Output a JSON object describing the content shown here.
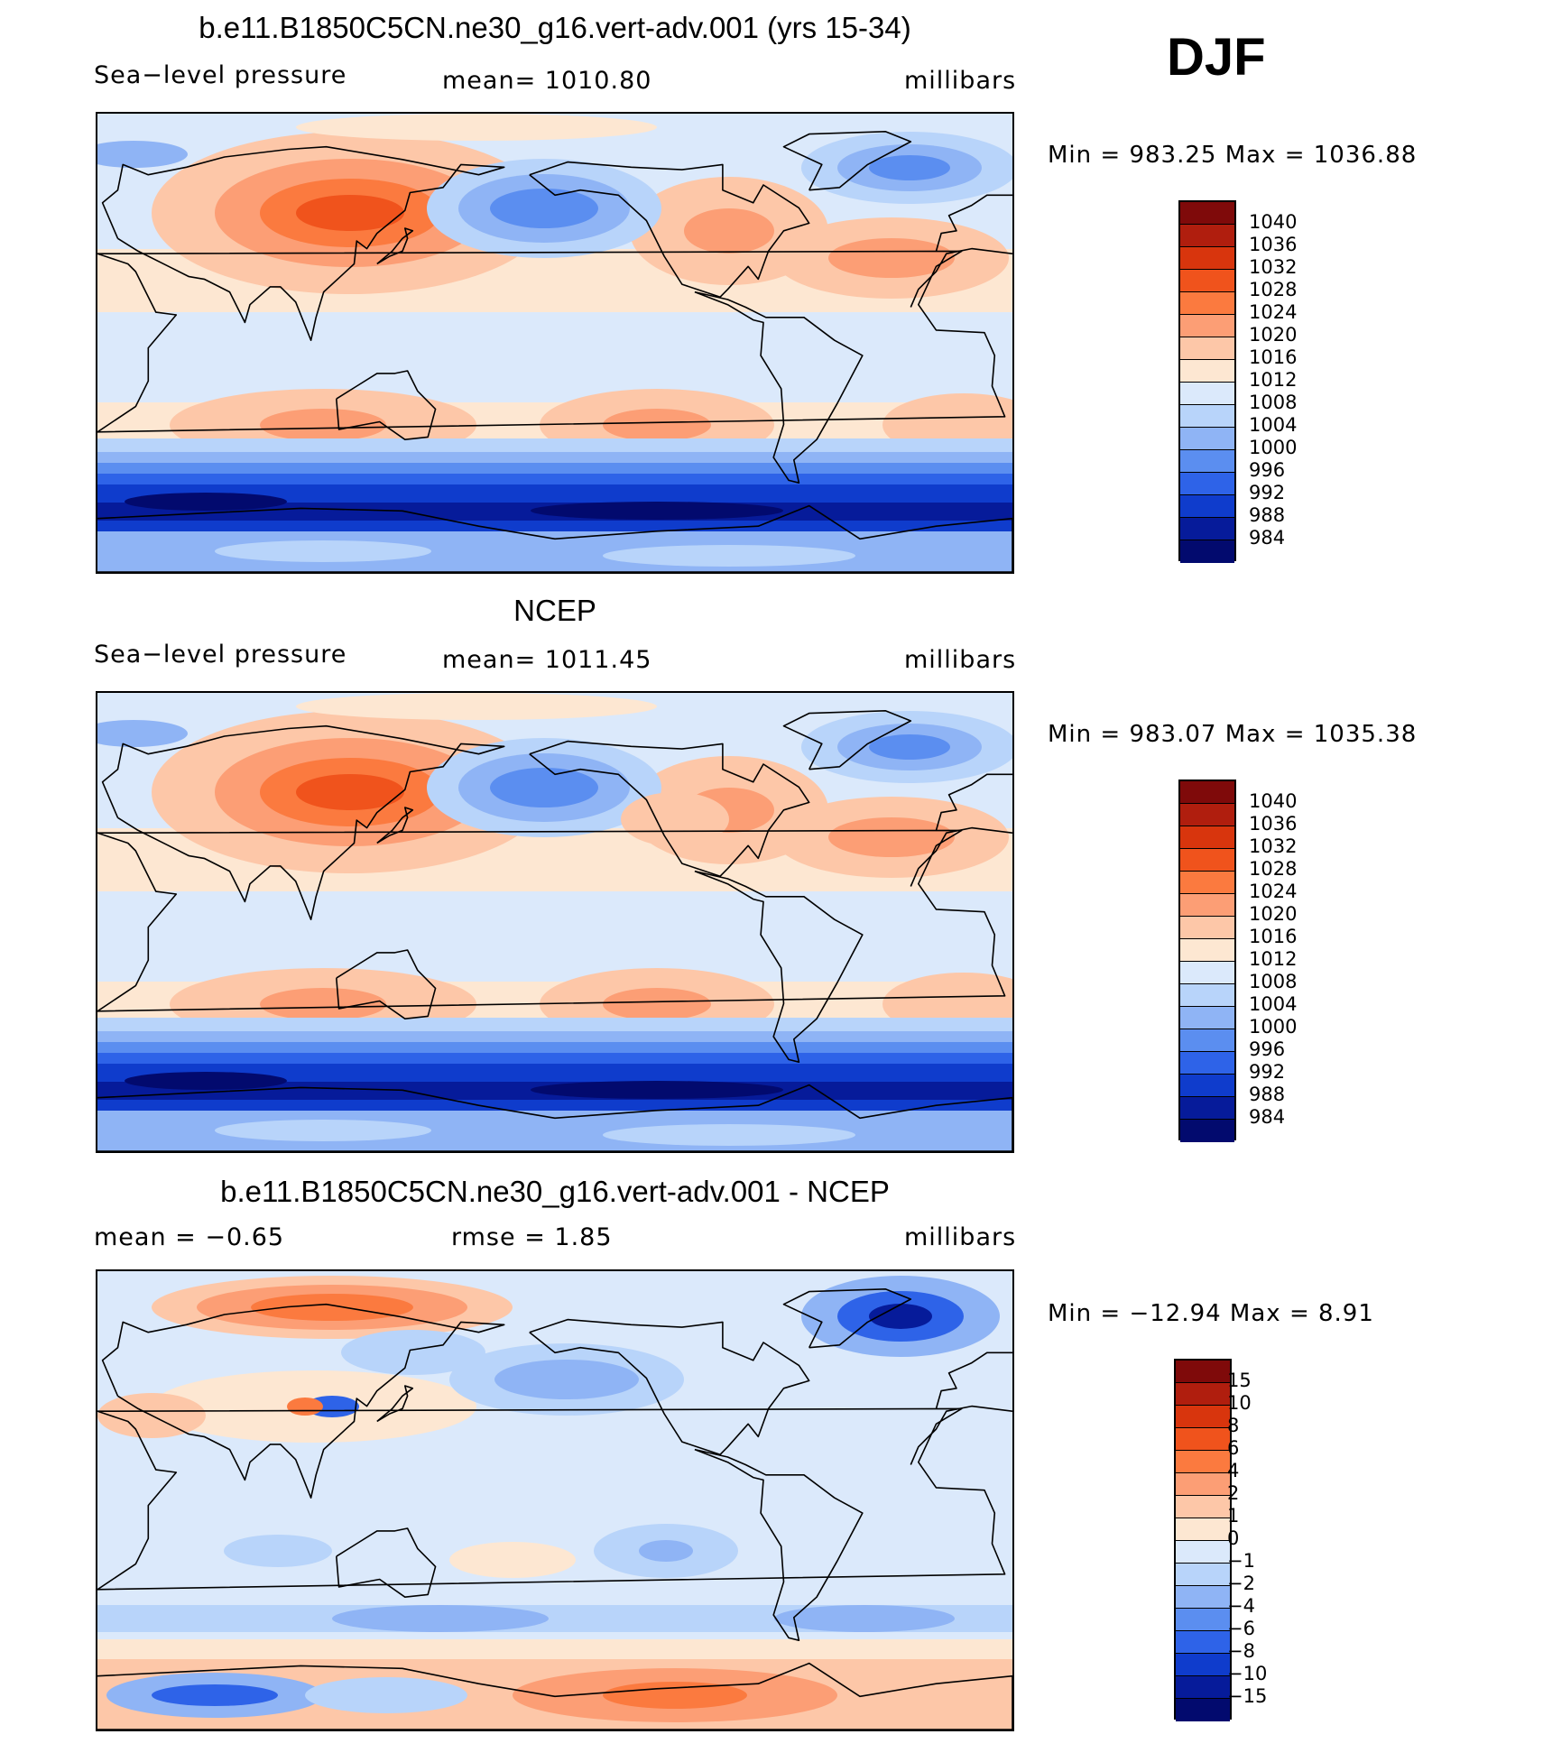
{
  "season": "DJF",
  "panels": [
    {
      "title": "b.e11.B1850C5CN.ne30_g16.vert-adv.001 (yrs 15-34)",
      "left": "Sea−level pressure",
      "center": "mean=  1010.80",
      "right": "millibars",
      "minmax": "Min  =  983.25  Max  =  1036.88",
      "map_name": "model-slp-map",
      "levels": [
        "1040",
        "1036",
        "1032",
        "1028",
        "1024",
        "1020",
        "1016",
        "1012",
        "1008",
        "1004",
        "1000",
        "996",
        "992",
        "988",
        "984"
      ]
    },
    {
      "title": "NCEP",
      "left": "Sea−level pressure",
      "center": "mean=  1011.45",
      "right": "millibars",
      "minmax": "Min  =  983.07  Max  =  1035.38",
      "map_name": "ncep-slp-map",
      "levels": [
        "1040",
        "1036",
        "1032",
        "1028",
        "1024",
        "1020",
        "1016",
        "1012",
        "1008",
        "1004",
        "1000",
        "996",
        "992",
        "988",
        "984"
      ]
    },
    {
      "title": "b.e11.B1850C5CN.ne30_g16.vert-adv.001 - NCEP",
      "left": "mean  =     −0.65",
      "center": "rmse  =     1.85",
      "right": "millibars",
      "minmax": "Min  =  −12.94  Max  =      8.91",
      "map_name": "difference-map",
      "levels": [
        "15",
        "10",
        "8",
        "6",
        "4",
        "2",
        "1",
        "0",
        "−1",
        "−2",
        "−4",
        "−6",
        "−8",
        "−10",
        "−15"
      ]
    }
  ],
  "colors": [
    "#7f0a0a",
    "#b01e0e",
    "#d8350d",
    "#f0531c",
    "#fb7a3f",
    "#fc9e75",
    "#fdc7a8",
    "#fde7d2",
    "#dbe9fb",
    "#b8d4fa",
    "#8fb4f5",
    "#5b8ef0",
    "#2e63e8",
    "#0f3ccc",
    "#061b9a",
    "#020a6e"
  ]
}
